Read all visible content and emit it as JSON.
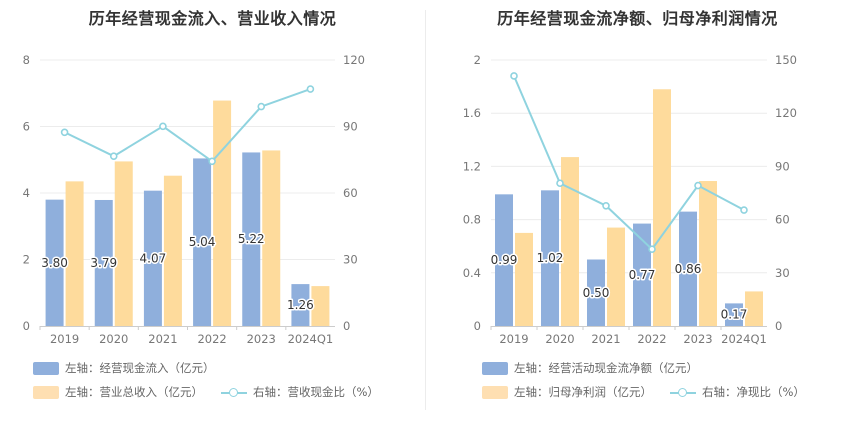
{
  "colors": {
    "bar_primary": "#8fafdc",
    "bar_secondary": "#fedb9c",
    "line": "#8fd3df"
  },
  "chart_data": [
    {
      "type": "bar",
      "title": "历年经营现金流入、营业收入情况",
      "categories": [
        "2019",
        "2020",
        "2021",
        "2022",
        "2023",
        "2024Q1"
      ],
      "y_left": {
        "ticks": [
          "0",
          "2",
          "4",
          "6",
          "8"
        ],
        "range": [
          0,
          8
        ]
      },
      "y_right": {
        "ticks": [
          "0",
          "30",
          "60",
          "90",
          "120"
        ],
        "range": [
          0,
          120
        ]
      },
      "grid": true,
      "legend_position": "bottom-left",
      "series": [
        {
          "name": "左轴：经营现金流入（亿元）",
          "axis": "left",
          "kind": "bar",
          "values": [
            3.8,
            3.79,
            4.07,
            5.04,
            5.22,
            1.26
          ],
          "labels": [
            "3.80",
            "3.79",
            "4.07",
            "5.04",
            "5.22",
            "1.26"
          ]
        },
        {
          "name": "左轴：营业总收入（亿元）",
          "axis": "left",
          "kind": "bar",
          "values": [
            4.35,
            4.95,
            4.52,
            6.78,
            5.28,
            1.2
          ]
        },
        {
          "name": "右轴：营收现金比（%）",
          "axis": "right",
          "kind": "line",
          "values": [
            87.4,
            76.6,
            90.1,
            74.3,
            99.0,
            106.9
          ]
        }
      ]
    },
    {
      "type": "bar",
      "title": "历年经营现金流净额、归母净利润情况",
      "categories": [
        "2019",
        "2020",
        "2021",
        "2022",
        "2023",
        "2024Q1"
      ],
      "y_left": {
        "ticks": [
          "0",
          "0.4",
          "0.8",
          "1.2",
          "1.6",
          "2"
        ],
        "range": [
          0,
          2
        ]
      },
      "y_right": {
        "ticks": [
          "0",
          "30",
          "60",
          "90",
          "120",
          "150"
        ],
        "range": [
          0,
          150
        ]
      },
      "grid": true,
      "legend_position": "bottom-left",
      "series": [
        {
          "name": "左轴：经营活动现金流净额（亿元）",
          "axis": "left",
          "kind": "bar",
          "values": [
            0.99,
            1.02,
            0.5,
            0.77,
            0.86,
            0.17
          ],
          "labels": [
            "0.99",
            "1.02",
            "0.50",
            "0.77",
            "0.86",
            "0.17"
          ]
        },
        {
          "name": "左轴：归母净利润（亿元）",
          "axis": "left",
          "kind": "bar",
          "values": [
            0.7,
            1.27,
            0.74,
            1.78,
            1.09,
            0.26
          ]
        },
        {
          "name": "右轴：净现比（%）",
          "axis": "right",
          "kind": "line",
          "values": [
            141.0,
            80.5,
            67.8,
            43.3,
            79.2,
            65.4
          ]
        }
      ]
    }
  ]
}
